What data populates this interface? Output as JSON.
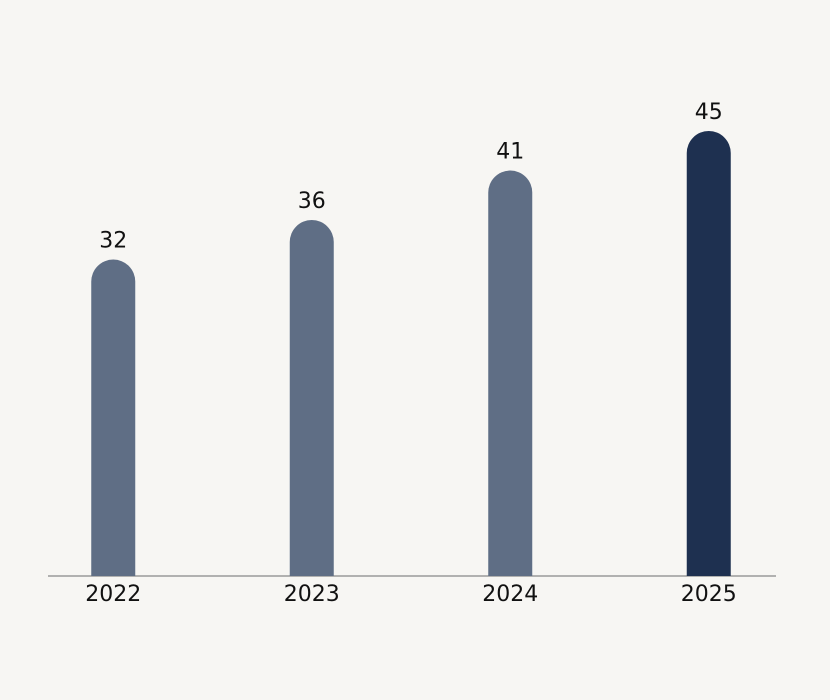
{
  "chart_data": {
    "type": "bar",
    "categories": [
      "2022",
      "2023",
      "2024",
      "2025"
    ],
    "values": [
      32,
      36,
      41,
      45
    ],
    "colors": [
      "#5f6e85",
      "#5f6e85",
      "#5f6e85",
      "#1e3050"
    ]
  }
}
